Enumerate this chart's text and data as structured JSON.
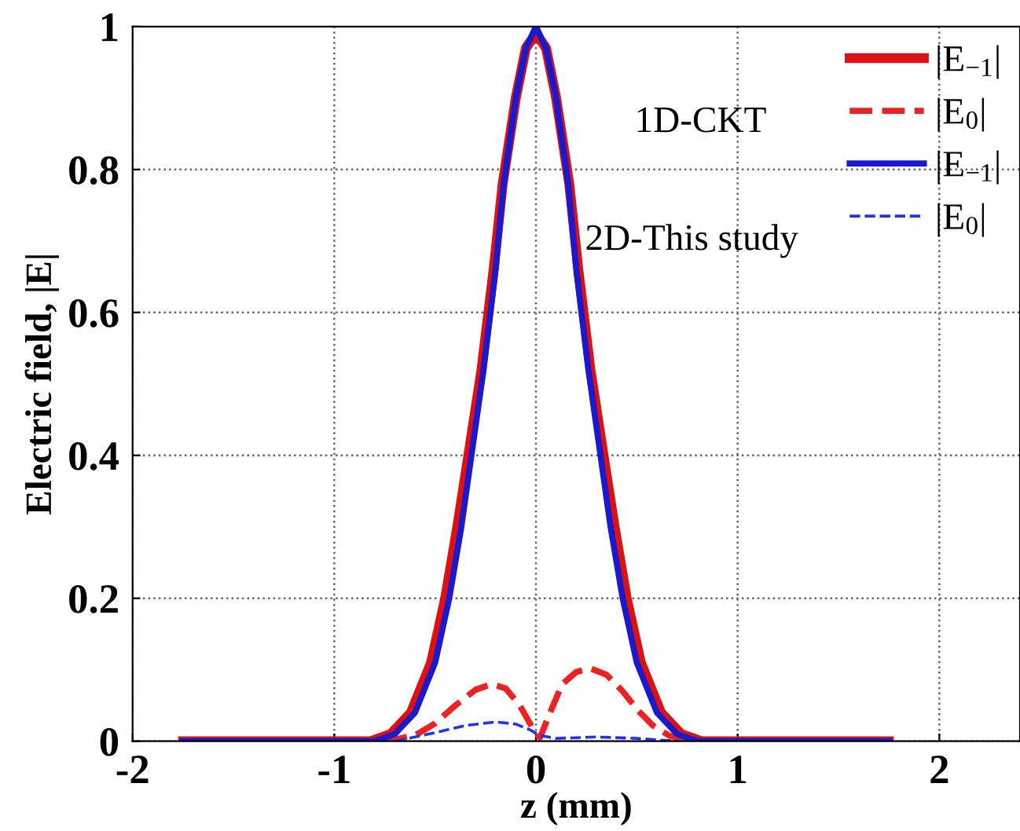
{
  "chart_data": {
    "type": "line",
    "xlabel": "z (mm)",
    "ylabel": "Electric field, |E|",
    "xlim": [
      -2,
      2.4
    ],
    "ylim": [
      0,
      1
    ],
    "xticks": [
      -2,
      -1,
      0,
      1,
      2
    ],
    "yticks": [
      0,
      0.2,
      0.4,
      0.6,
      0.8,
      1
    ],
    "grid": true,
    "legend": "top right",
    "marker": "none",
    "annotations": [
      "1D-CKT",
      "2D-This study"
    ],
    "series": [
      {
        "name": "|E$_{−1}$|",
        "color": "#dd1111",
        "line_style": "solid",
        "x": [
          -1.75,
          -1,
          -0.82,
          -0.72,
          -0.62,
          -0.52,
          -0.45,
          -0.39,
          -0.335,
          -0.27,
          -0.21,
          -0.165,
          -0.1,
          -0.05,
          0,
          0.05,
          0.1,
          0.165,
          0.21,
          0.27,
          0.335,
          0.39,
          0.45,
          0.52,
          0.62,
          0.72,
          0.82,
          1,
          1.75
        ],
        "values": [
          0,
          0,
          0,
          0.01,
          0.04,
          0.11,
          0.2,
          0.3,
          0.4,
          0.52,
          0.66,
          0.78,
          0.9,
          0.97,
          0.99,
          0.97,
          0.9,
          0.78,
          0.66,
          0.52,
          0.4,
          0.3,
          0.2,
          0.11,
          0.04,
          0.01,
          0,
          0,
          0
        ]
      },
      {
        "name": "|E$_{0}$|",
        "color": "#ee2222",
        "line_style": "dashed",
        "x": [
          -0.75,
          -0.6,
          -0.5,
          -0.4,
          -0.3,
          -0.22,
          -0.15,
          -0.08,
          -0.02,
          0.02,
          0.07,
          0.13,
          0.2,
          0.27,
          0.35,
          0.43,
          0.5,
          0.58,
          0.66,
          0.75
        ],
        "values": [
          0,
          0.008,
          0.025,
          0.05,
          0.072,
          0.08,
          0.074,
          0.05,
          0.02,
          0.005,
          0.04,
          0.08,
          0.097,
          0.102,
          0.093,
          0.07,
          0.045,
          0.022,
          0.008,
          0
        ]
      },
      {
        "name": "|E$_{−1}$|",
        "color": "#1a1acc",
        "line_style": "solid",
        "x": [
          -1.75,
          -1,
          -0.8,
          -0.7,
          -0.6,
          -0.5,
          -0.43,
          -0.37,
          -0.32,
          -0.26,
          -0.2,
          -0.16,
          -0.1,
          -0.05,
          0,
          0.05,
          0.1,
          0.16,
          0.2,
          0.26,
          0.32,
          0.37,
          0.43,
          0.5,
          0.6,
          0.7,
          0.8,
          1,
          1.75
        ],
        "values": [
          0,
          0,
          0,
          0.01,
          0.04,
          0.11,
          0.2,
          0.3,
          0.4,
          0.52,
          0.66,
          0.78,
          0.9,
          0.97,
          1,
          0.97,
          0.9,
          0.78,
          0.66,
          0.52,
          0.4,
          0.3,
          0.2,
          0.11,
          0.04,
          0.01,
          0,
          0,
          0
        ]
      },
      {
        "name": "|E$_{0}$|",
        "color": "#2233ee",
        "line_style": "dashed",
        "x": [
          -0.7,
          -0.5,
          -0.35,
          -0.2,
          -0.1,
          -0.03,
          0.02,
          0.1,
          0.3,
          0.5,
          0.7
        ],
        "values": [
          0,
          0.012,
          0.022,
          0.027,
          0.024,
          0.016,
          0.008,
          0.004,
          0.006,
          0.004,
          0
        ]
      }
    ]
  }
}
